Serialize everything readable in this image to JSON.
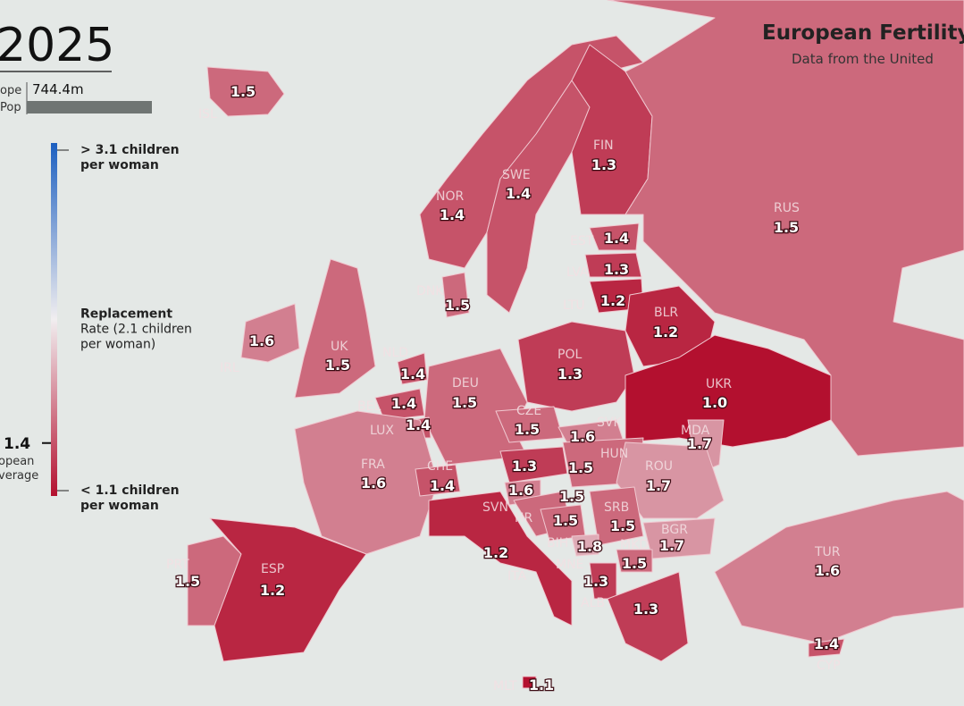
{
  "header": {
    "year": "2025",
    "title": "European Fertility",
    "subtitle": "Data from the United",
    "pop_labels": [
      "ope",
      "Pop"
    ],
    "population": "744.4m"
  },
  "legend": {
    "range": [
      1.1,
      3.1
    ],
    "colors": [
      "#b3102f",
      "#f1eef0",
      "#1c5fc0"
    ],
    "mid": 2.1,
    "top_label": [
      "> 3.1 children",
      "per woman"
    ],
    "mid_label": [
      "Replacement",
      "Rate (2.1 children",
      "per woman)"
    ],
    "bottom_label": [
      "< 1.1 children",
      "per woman"
    ],
    "average_value": 1.4,
    "average_label": [
      "opean",
      "verage"
    ]
  },
  "countries": [
    {
      "code": "ISL",
      "value": 1.5
    },
    {
      "code": "NOR",
      "value": 1.4
    },
    {
      "code": "SWE",
      "value": 1.4
    },
    {
      "code": "FIN",
      "value": 1.3
    },
    {
      "code": "RUS",
      "value": 1.5
    },
    {
      "code": "EST",
      "value": 1.4
    },
    {
      "code": "LVA",
      "value": 1.3
    },
    {
      "code": "LTU",
      "value": 1.2
    },
    {
      "code": "DNK",
      "value": 1.5
    },
    {
      "code": "BLR",
      "value": 1.2
    },
    {
      "code": "IRL",
      "value": 1.6
    },
    {
      "code": "UK",
      "value": 1.5
    },
    {
      "code": "NLD",
      "value": 1.4
    },
    {
      "code": "POL",
      "value": 1.3
    },
    {
      "code": "UKR",
      "value": 1.0,
      "value_label": "1.0"
    },
    {
      "code": "DEU",
      "value": 1.5
    },
    {
      "code": "BEL",
      "value": 1.4
    },
    {
      "code": "LUX",
      "value": 1.4
    },
    {
      "code": "CZE",
      "value": 1.5
    },
    {
      "code": "SVK",
      "value": 1.6
    },
    {
      "code": "MDA",
      "value": 1.7
    },
    {
      "code": "FRA",
      "value": 1.6
    },
    {
      "value": 1.3
    },
    {
      "code": "HUN",
      "value": 1.5
    },
    {
      "code": "ROU",
      "value": 1.7
    },
    {
      "code": "CHE",
      "value": 1.4
    },
    {
      "code": "SVN",
      "value": 1.6
    },
    {
      "code": "HR",
      "value": 1.5
    },
    {
      "code": "BIH",
      "value": 1.5
    },
    {
      "code": "SRB",
      "value": 1.5
    },
    {
      "code": "BGR",
      "value": 1.7
    },
    {
      "code": "MNE",
      "value": 1.8
    },
    {
      "code": "ITA",
      "value": 1.2
    },
    {
      "code": "MKD",
      "value": 1.5
    },
    {
      "code": "ALB",
      "value": 1.3
    },
    {
      "value": 1.3
    },
    {
      "code": "PRT",
      "value": 1.5
    },
    {
      "code": "ESP",
      "value": 1.2
    },
    {
      "code": "TUR",
      "value": 1.6
    },
    {
      "code": "CYP",
      "value": 1.4
    },
    {
      "code": "MLT",
      "value": 1.1
    }
  ]
}
